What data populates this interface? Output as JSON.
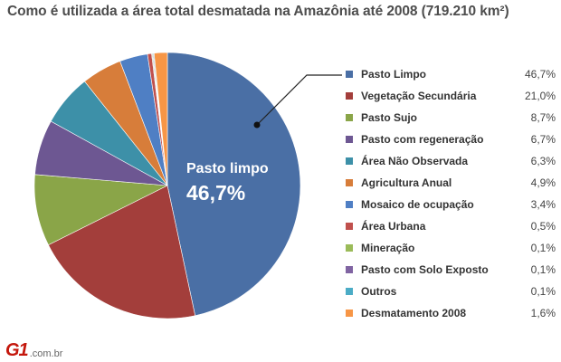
{
  "chart_data": {
    "type": "pie",
    "title": "Como é utilizada a área total desmatada na Amazônia até 2008 (719.210 km²)",
    "categories": [
      "Pasto Limpo",
      "Vegetação Secundária",
      "Pasto Sujo",
      "Pasto com regeneração",
      "Área Não Observada",
      "Agricultura Anual",
      "Mosaico de ocupação",
      "Área Urbana",
      "Mineração",
      "Pasto com Solo Exposto",
      "Outros",
      "Desmatamento 2008"
    ],
    "values": [
      46.7,
      21.0,
      8.7,
      6.7,
      6.3,
      4.9,
      3.4,
      0.5,
      0.1,
      0.1,
      0.1,
      1.6
    ],
    "value_labels": [
      "46,7%",
      "21,0%",
      "8,7%",
      "6,7%",
      "6,3%",
      "4,9%",
      "3,4%",
      "0,5%",
      "0,1%",
      "0,1%",
      "0,1%",
      "1,6%"
    ],
    "colors": [
      "#4a6fa5",
      "#a33e3b",
      "#8aa548",
      "#6d5792",
      "#3d90a8",
      "#d77d3a",
      "#4f7fc4",
      "#c0504d",
      "#9bbb59",
      "#8064a2",
      "#4bacc6",
      "#f79646"
    ],
    "start": "12 o'clock",
    "direction": "clockwise",
    "legend_position": "right",
    "callout": {
      "label": "Pasto limpo",
      "value": "46,7%"
    }
  },
  "branding": {
    "logo": "G1",
    "domain": ".com.br"
  }
}
